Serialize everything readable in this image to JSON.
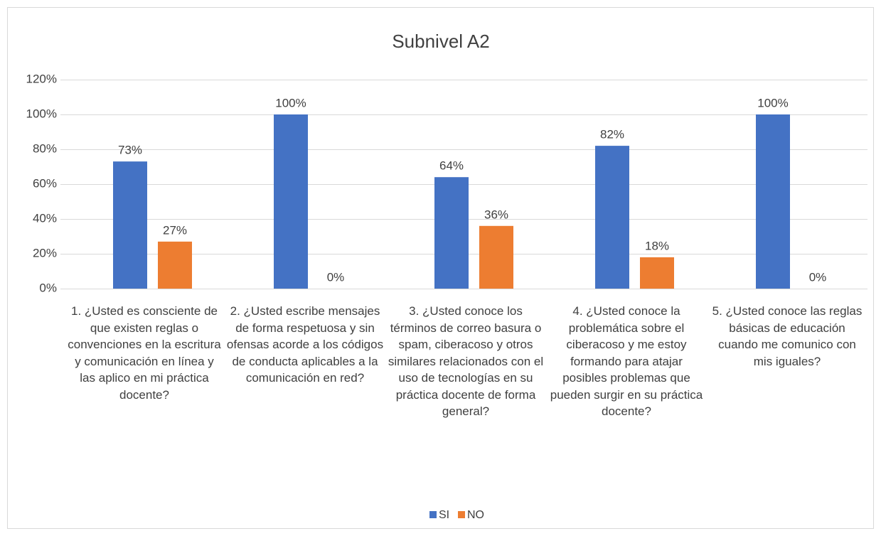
{
  "chart_data": {
    "type": "bar",
    "title": "Subnivel A2",
    "categories": [
      "1. ¿Usted es consciente de que existen reglas o convenciones en la escritura y comunicación en línea y las aplico en mi práctica docente?",
      "2. ¿Usted escribe mensajes de forma respetuosa y sin ofensas acorde a los códigos de conducta aplicables a la comunicación en red?",
      "3. ¿Usted conoce los términos de correo basura o spam, ciberacoso y otros similares relacionados con el uso de tecnologías en su práctica docente de forma general?",
      "4. ¿Usted conoce la problemática sobre el ciberacoso y me estoy formando para atajar posibles problemas que pueden surgir en su práctica docente?",
      "5. ¿Usted conoce las reglas básicas de educación cuando me comunico con mis iguales?"
    ],
    "series": [
      {
        "name": "SI",
        "color": "#4472c4",
        "values": [
          73,
          100,
          64,
          82,
          100
        ],
        "value_labels": [
          "73%",
          "100%",
          "64%",
          "82%",
          "100%"
        ]
      },
      {
        "name": "NO",
        "color": "#ed7d31",
        "values": [
          27,
          0,
          36,
          18,
          0
        ],
        "value_labels": [
          "27%",
          "0%",
          "36%",
          "18%",
          "0%"
        ]
      }
    ],
    "ylim": [
      0,
      120
    ],
    "yticks": [
      {
        "value": 0,
        "label": "0%"
      },
      {
        "value": 20,
        "label": "20%"
      },
      {
        "value": 40,
        "label": "40%"
      },
      {
        "value": 60,
        "label": "60%"
      },
      {
        "value": 80,
        "label": "80%"
      },
      {
        "value": 100,
        "label": "100%"
      },
      {
        "value": 120,
        "label": "120%"
      }
    ],
    "grid": true,
    "legend": "bottom"
  }
}
